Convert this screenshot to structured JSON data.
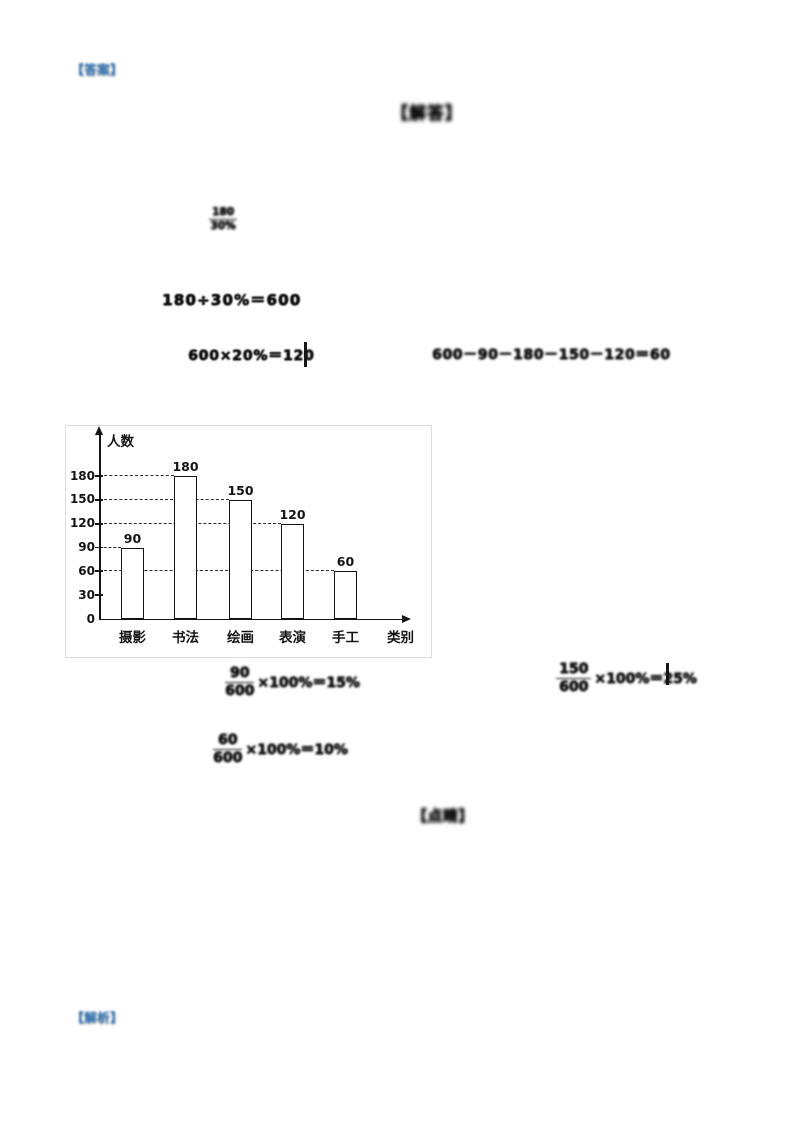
{
  "labels": {
    "answer": "【答案】",
    "section_title": "【解答】",
    "tips": "【点睛】",
    "analysis": "【解析】"
  },
  "solution": {
    "note_fraction": {
      "numerator": "180",
      "denominator": "30%"
    },
    "eq_total": "180÷30%＝600",
    "eq_perform": "600×20%＝120",
    "eq_craft": "600－90－180－150－120＝60",
    "pct_photography": {
      "numerator": "90",
      "denominator": "600",
      "rest": "×100%＝15%"
    },
    "pct_painting": {
      "numerator": "150",
      "denominator": "600",
      "rest": "×100%＝25%"
    },
    "pct_craft": {
      "numerator": "60",
      "denominator": "600",
      "rest": "×100%＝10%"
    }
  },
  "chart_data": {
    "type": "bar",
    "title": "",
    "categories": [
      "摄影",
      "书法",
      "绘画",
      "表演",
      "手工"
    ],
    "values": [
      90,
      180,
      150,
      120,
      60
    ],
    "ylabel": "人数",
    "xlabel": "类别",
    "yticks": [
      0,
      30,
      60,
      90,
      120,
      150,
      180
    ],
    "ylim": [
      0,
      200
    ],
    "legend": "none",
    "grid": "dashed guide lines from y-axis to each bar top",
    "bar_fill": "#ffffff",
    "bar_border": "#000000"
  }
}
